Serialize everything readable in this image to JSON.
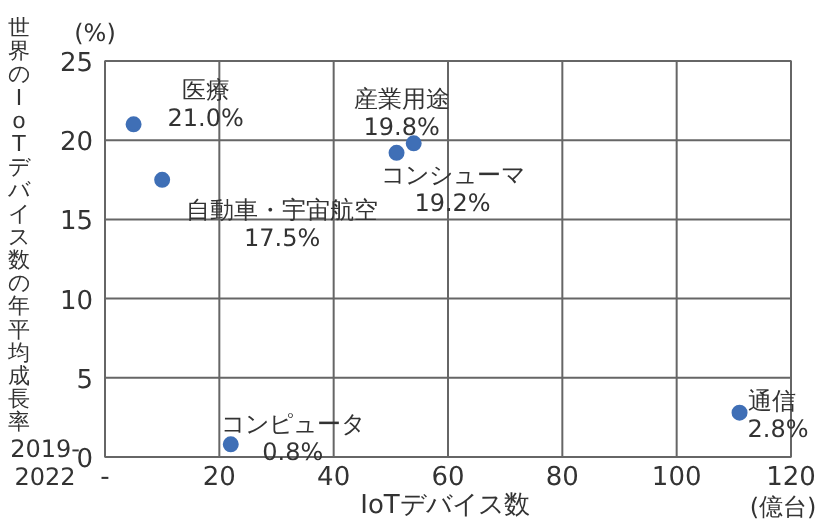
{
  "chart_data": {
    "type": "scatter",
    "xlabel": "IoTデバイス数",
    "ylabel": "世界のIoTデバイス数の年平均成長率",
    "x": [
      5,
      10,
      54,
      51,
      22,
      111
    ],
    "series": [
      {
        "color": "#3f6fb6",
        "values": [
          21.0,
          17.5,
          19.8,
          19.2,
          0.8,
          2.8
        ]
      }
    ],
    "xlim": [
      0,
      120
    ],
    "ylim": [
      0,
      25
    ],
    "xticks": [
      {
        "value": 0,
        "label": "-"
      },
      20,
      40,
      60,
      80,
      100,
      120
    ],
    "yticks": [
      0,
      5,
      10,
      15,
      20,
      25
    ],
    "grid": true,
    "marker": "circle",
    "annotations": [
      {
        "text": "医療\n21.0%",
        "x": 5,
        "y": 21.0
      },
      {
        "text": "自動車・宇宙航空\n17.5%",
        "x": 10,
        "y": 17.5
      },
      {
        "text": "産業用途\n19.8%",
        "x": 54,
        "y": 19.8
      },
      {
        "text": "コンシューマ\n19.2%",
        "x": 51,
        "y": 19.2
      },
      {
        "text": "コンピュータ\n0.8%",
        "x": 22,
        "y": 0.8
      },
      {
        "text": "通信\n2.8%",
        "x": 111,
        "y": 2.8
      },
      "(%)",
      "2019-\n2022",
      "(億台)"
    ]
  }
}
